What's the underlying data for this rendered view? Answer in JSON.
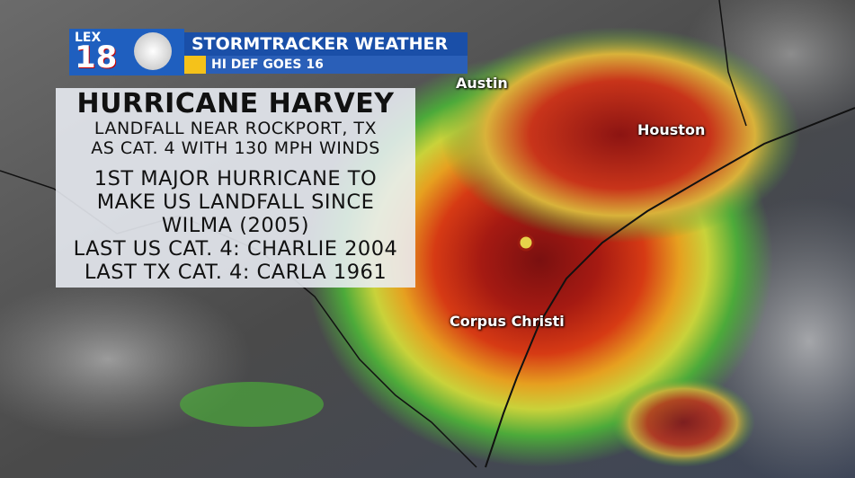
{
  "header": {
    "logo": {
      "top": "LEX",
      "number": "18"
    },
    "title": "STORMTRACKER WEATHER",
    "subtitle": "HI DEF GOES 16"
  },
  "panel": {
    "title": "HURRICANE HARVEY",
    "subtitle_lines": [
      "LANDFALL NEAR ROCKPORT, TX",
      "AS CAT. 4 WITH 130 MPH WINDS"
    ],
    "lines": [
      "1ST MAJOR HURRICANE TO",
      "MAKE US LANDFALL SINCE",
      "WILMA (2005)",
      "LAST US CAT. 4: CHARLIE 2004",
      "LAST TX CAT. 4: CARLA 1961"
    ]
  },
  "cities": [
    "Austin",
    "Houston",
    "Corpus Christi"
  ]
}
